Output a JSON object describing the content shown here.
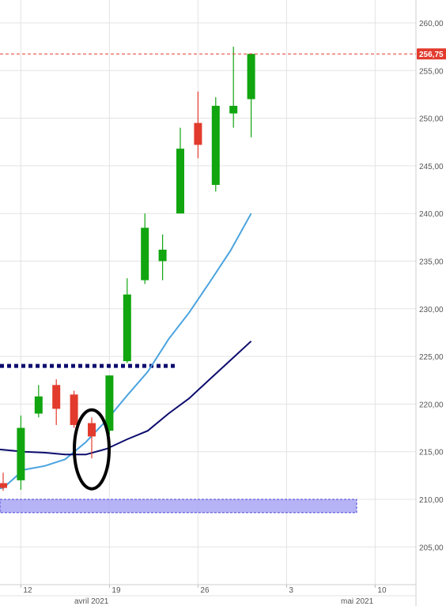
{
  "chart_data": {
    "type": "candlestick",
    "y_axis": {
      "min": 200,
      "max": 262,
      "ticks": [
        "205,00",
        "210,00",
        "215,00",
        "220,00",
        "225,00",
        "230,00",
        "235,00",
        "240,00",
        "245,00",
        "250,00",
        "255,00",
        "260,00"
      ],
      "position": "right"
    },
    "x_axis": {
      "day_ticks": [
        "12",
        "19",
        "26",
        "3",
        "10"
      ],
      "month_labels": [
        "avril 2021",
        "mai 2021"
      ]
    },
    "last_price": {
      "value": 256.75,
      "label": "256,75"
    },
    "candles": [
      {
        "date": "2021-04-09",
        "open": 211.7,
        "high": 212.8,
        "low": 210.9,
        "close": 211.2
      },
      {
        "date": "2021-04-12",
        "open": 212.0,
        "high": 218.8,
        "low": 211.0,
        "close": 217.5
      },
      {
        "date": "2021-04-13",
        "open": 219.0,
        "high": 222.0,
        "low": 218.6,
        "close": 220.8
      },
      {
        "date": "2021-04-14",
        "open": 222.0,
        "high": 222.6,
        "low": 217.8,
        "close": 219.5
      },
      {
        "date": "2021-04-15",
        "open": 221.0,
        "high": 221.4,
        "low": 217.5,
        "close": 217.8
      },
      {
        "date": "2021-04-16",
        "open": 218.0,
        "high": 218.6,
        "low": 214.3,
        "close": 216.6
      },
      {
        "date": "2021-04-19",
        "open": 217.2,
        "high": 223.0,
        "low": 216.8,
        "close": 223.0
      },
      {
        "date": "2021-04-20",
        "open": 224.5,
        "high": 233.2,
        "low": 224.3,
        "close": 231.5
      },
      {
        "date": "2021-04-21",
        "open": 233.0,
        "high": 240.0,
        "low": 232.6,
        "close": 238.5
      },
      {
        "date": "2021-04-22",
        "open": 235.0,
        "high": 237.8,
        "low": 233.0,
        "close": 236.2
      },
      {
        "date": "2021-04-23",
        "open": 240.0,
        "high": 249.0,
        "low": 240.0,
        "close": 246.8
      },
      {
        "date": "2021-04-26",
        "open": 249.5,
        "high": 252.8,
        "low": 245.8,
        "close": 247.2
      },
      {
        "date": "2021-04-27",
        "open": 243.0,
        "high": 252.2,
        "low": 242.3,
        "close": 251.3
      },
      {
        "date": "2021-04-28",
        "open": 250.5,
        "high": 257.5,
        "low": 249.0,
        "close": 251.3
      },
      {
        "date": "2021-04-29",
        "open": 252.0,
        "high": 256.8,
        "low": 248.0,
        "close": 256.75
      }
    ],
    "series": [
      {
        "line_color": "#4aa3df",
        "points": [
          [
            -4,
            210.8
          ],
          [
            -2,
            210.9
          ],
          [
            0,
            211.2
          ],
          [
            2,
            213.1
          ],
          [
            4,
            213.5
          ],
          [
            6,
            214.2
          ],
          [
            8,
            216.0
          ],
          [
            10,
            218.3
          ],
          [
            12,
            220.9
          ],
          [
            14,
            223.4
          ],
          [
            16,
            226.8
          ],
          [
            18,
            229.6
          ],
          [
            20,
            232.8
          ],
          [
            22,
            236.1
          ],
          [
            24,
            240.0
          ]
        ]
      },
      {
        "line_color": "#0c0c6e",
        "points": [
          [
            -4,
            215.8
          ],
          [
            -2,
            215.4
          ],
          [
            0,
            215.2
          ],
          [
            2,
            215.0
          ],
          [
            4,
            214.9
          ],
          [
            6,
            214.7
          ],
          [
            8,
            214.7
          ],
          [
            10,
            215.3
          ],
          [
            12,
            216.3
          ],
          [
            14,
            217.2
          ],
          [
            16,
            219.0
          ],
          [
            18,
            220.6
          ],
          [
            20,
            222.6
          ],
          [
            22,
            224.6
          ],
          [
            24,
            226.6
          ]
        ]
      }
    ],
    "annotations": {
      "resistance_line": {
        "value": 224.0,
        "color": "#0c0c6e",
        "style": "dotted"
      },
      "support_zone": {
        "from": 208.6,
        "to": 210.0,
        "color": "#a9a6f5"
      },
      "ellipse_highlight": {
        "center_index": 5,
        "center_value": 215.0
      }
    },
    "colors": {
      "up": "#11a50f",
      "down": "#e23b2e",
      "grid": "#e3e3e3",
      "last_price": "#e23b2e"
    },
    "grid": true
  }
}
